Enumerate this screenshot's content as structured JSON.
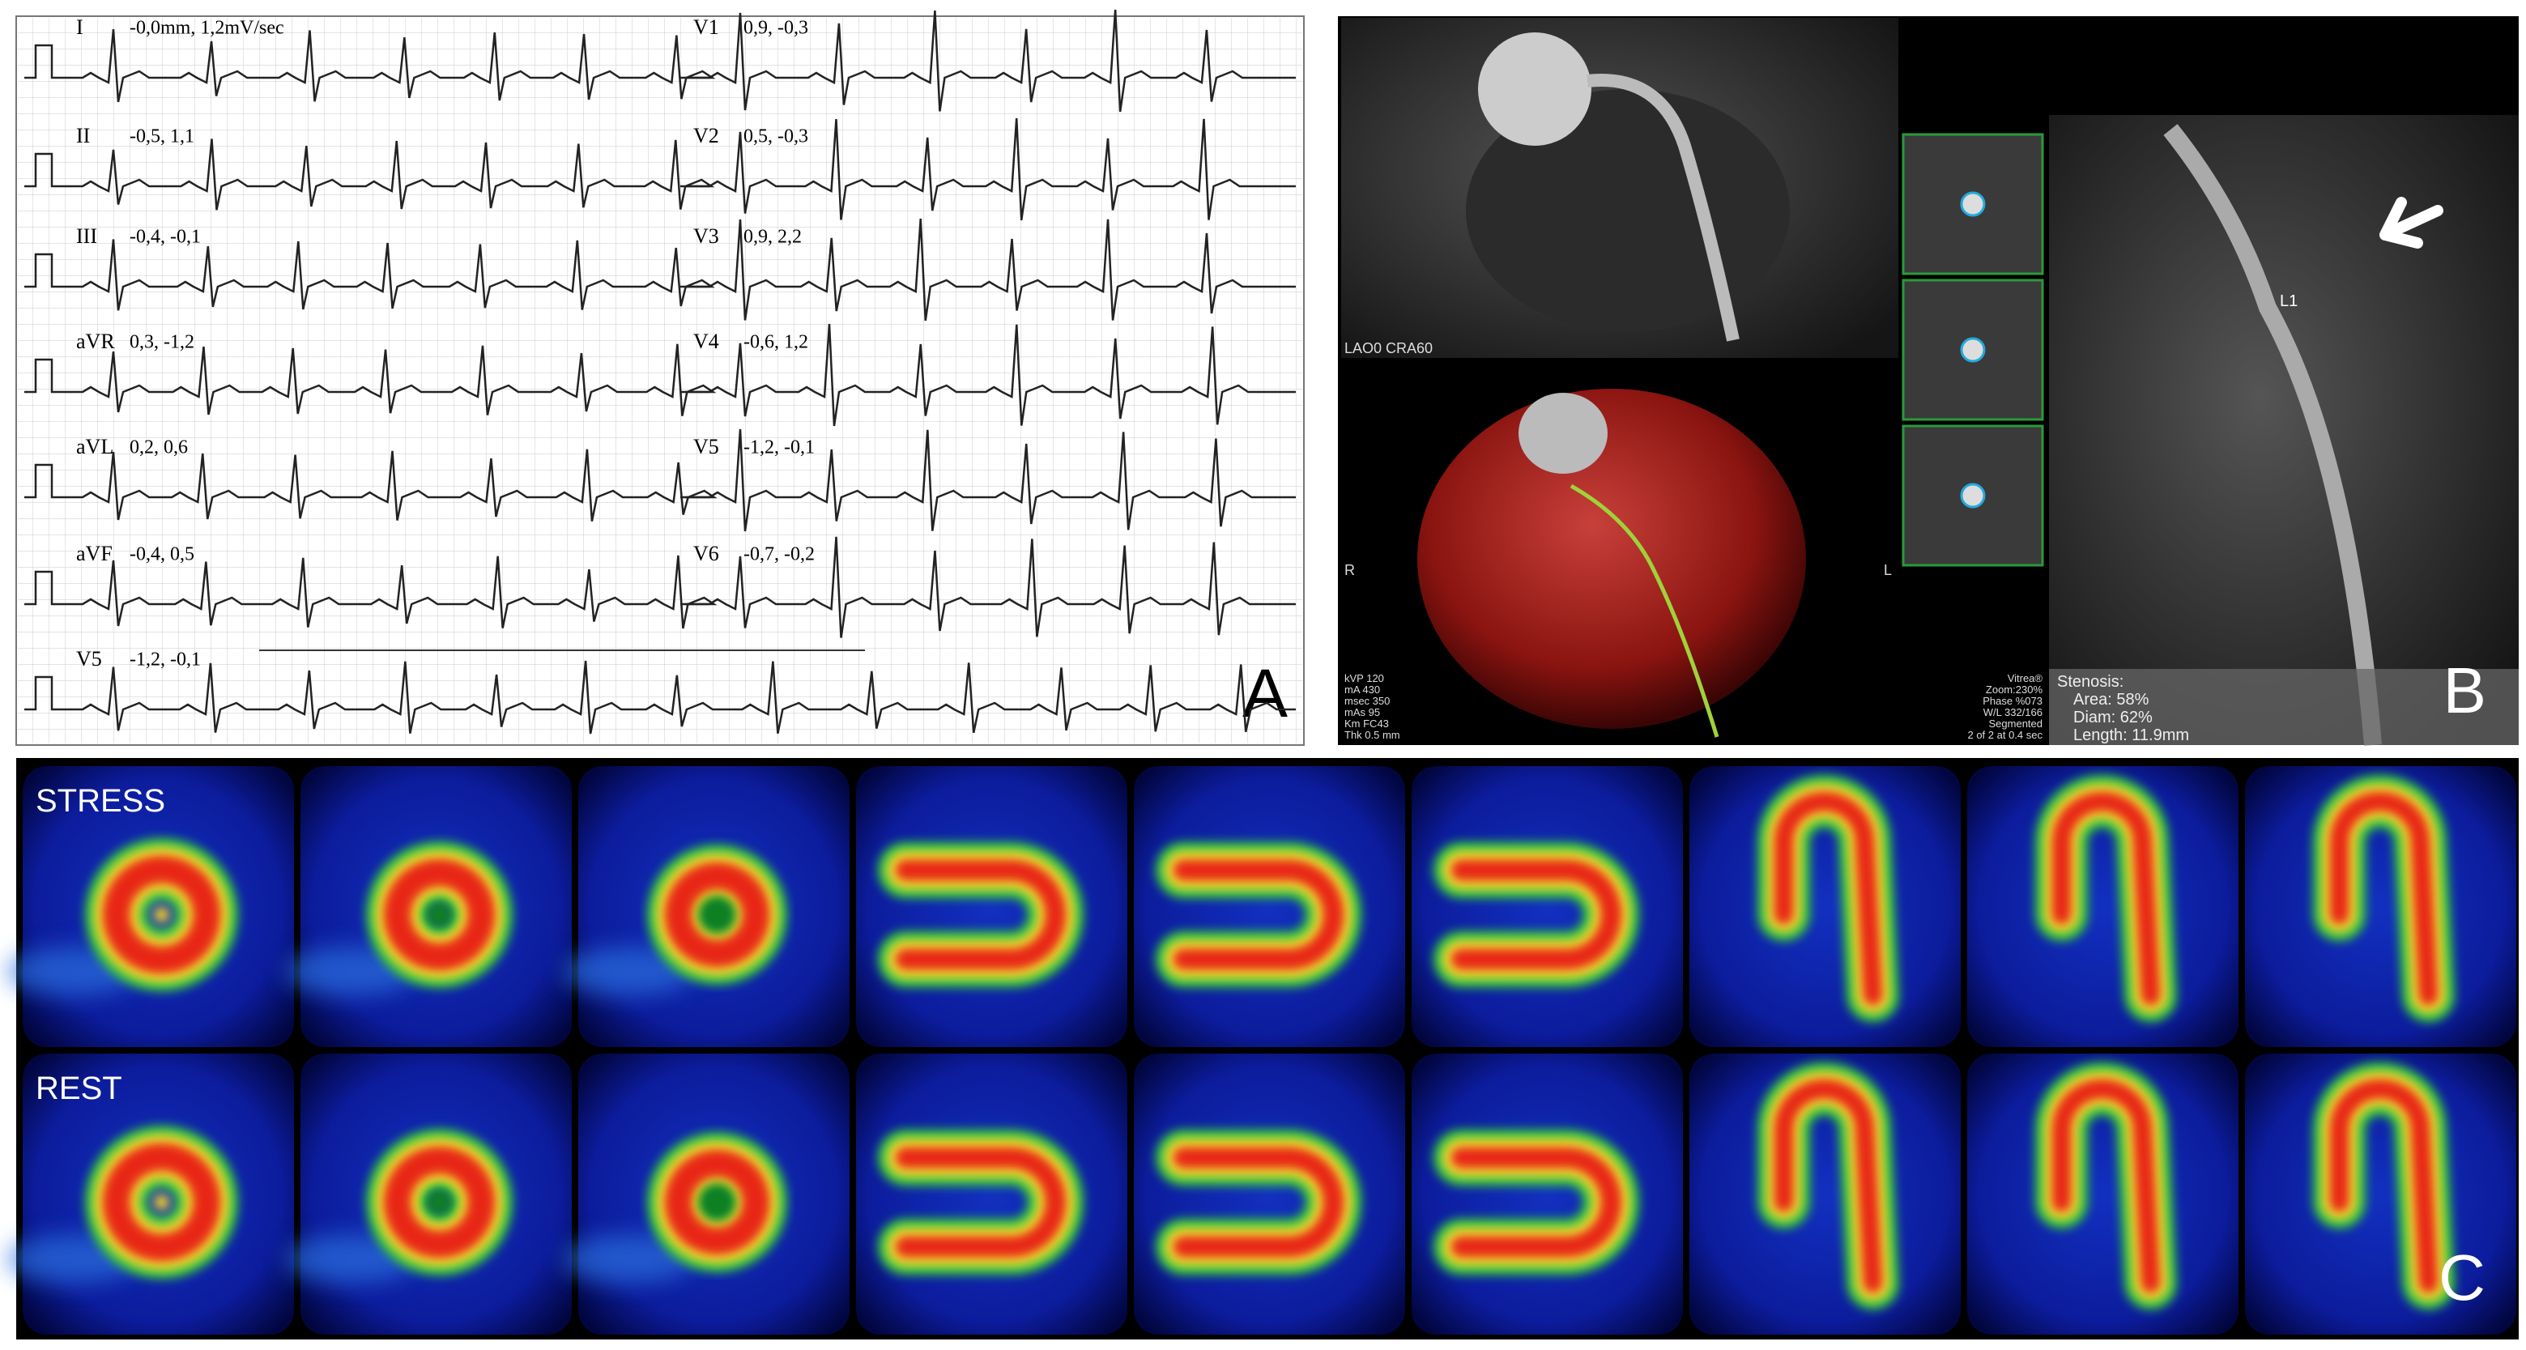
{
  "panel_labels": [
    "A",
    "B",
    "C"
  ],
  "ecg": {
    "leads": [
      {
        "label": "I",
        "value": "-0,0mm, 1,2mV/sec"
      },
      {
        "label": "II",
        "value": "-0,5, 1,1"
      },
      {
        "label": "III",
        "value": "-0,4, -0,1"
      },
      {
        "label": "aVR",
        "value": "0,3, -1,2"
      },
      {
        "label": "aVL",
        "value": "0,2, 0,6"
      },
      {
        "label": "aVF",
        "value": "-0,4, 0,5"
      },
      {
        "label": "V5",
        "value": "-1,2, -0,1"
      },
      {
        "label": "V1",
        "value": "0,9, -0,3"
      },
      {
        "label": "V2",
        "value": "0,5, -0,3"
      },
      {
        "label": "V3",
        "value": "0,9, 2,2"
      },
      {
        "label": "V4",
        "value": "-0,6, 1,2"
      },
      {
        "label": "V5",
        "value": "-1,2, -0,1"
      },
      {
        "label": "V6",
        "value": "-0,7, -0,2"
      }
    ]
  },
  "ct": {
    "view": "LAO0 CRA60",
    "orientation_left": "R",
    "orientation_right": "L",
    "scan_params": [
      "kVP 120",
      "mA 430",
      "msec 350",
      "mAs 95",
      "Km FC43",
      "Thk 0.5 mm"
    ],
    "display_params": [
      "Vitrea®",
      "Zoom:230%",
      "Phase %073",
      "W/L 332/166",
      "Segmented",
      "2 of 2 at 0.4 sec"
    ],
    "lesion": "L1",
    "stenosis": [
      "Stenosis:",
      "Area: 58%",
      "Diam: 62%",
      "Length: 11.9mm"
    ]
  },
  "spect": {
    "rows": [
      "STRESS",
      "REST"
    ]
  }
}
